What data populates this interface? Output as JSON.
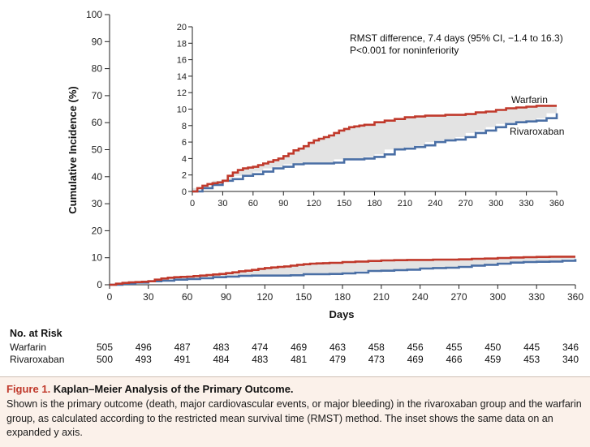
{
  "chart_data": [
    {
      "type": "line",
      "title": "Kaplan-Meier Analysis of the Primary Outcome (main panel)",
      "xlabel": "Days",
      "ylabel": "Cumulative Incidence (%)",
      "xlim": [
        0,
        360
      ],
      "ylim": [
        0,
        100
      ],
      "xticks": [
        "0",
        "30",
        "60",
        "90",
        "120",
        "150",
        "180",
        "210",
        "240",
        "270",
        "300",
        "330",
        "360"
      ],
      "yticks": [
        "0",
        "10",
        "20",
        "30",
        "40",
        "50",
        "60",
        "70",
        "80",
        "90",
        "100"
      ],
      "series": [
        {
          "name": "Warfarin",
          "color": "#c0392b",
          "x": [
            0,
            5,
            10,
            15,
            20,
            25,
            30,
            35,
            40,
            45,
            50,
            55,
            60,
            65,
            70,
            75,
            80,
            85,
            90,
            95,
            100,
            105,
            110,
            115,
            120,
            125,
            130,
            135,
            140,
            145,
            150,
            155,
            160,
            165,
            170,
            180,
            190,
            200,
            210,
            220,
            230,
            240,
            250,
            260,
            270,
            280,
            290,
            300,
            310,
            320,
            330,
            340,
            350,
            360
          ],
          "y": [
            0,
            0.4,
            0.7,
            0.9,
            1.0,
            1.1,
            1.3,
            1.9,
            2.3,
            2.6,
            2.8,
            2.9,
            3.0,
            3.2,
            3.4,
            3.6,
            3.8,
            4.0,
            4.3,
            4.6,
            5.0,
            5.2,
            5.5,
            5.9,
            6.2,
            6.4,
            6.6,
            6.8,
            7.1,
            7.4,
            7.6,
            7.8,
            7.9,
            8.0,
            8.1,
            8.4,
            8.6,
            8.8,
            9.0,
            9.1,
            9.2,
            9.2,
            9.3,
            9.3,
            9.4,
            9.6,
            9.7,
            9.9,
            10.1,
            10.2,
            10.3,
            10.4,
            10.4,
            10.4
          ]
        },
        {
          "name": "Rivaroxaban",
          "color": "#4a6fa5",
          "x": [
            0,
            10,
            20,
            30,
            40,
            50,
            60,
            70,
            80,
            90,
            100,
            110,
            120,
            130,
            140,
            150,
            160,
            170,
            180,
            190,
            200,
            210,
            220,
            230,
            240,
            250,
            260,
            270,
            280,
            290,
            300,
            310,
            320,
            330,
            340,
            350,
            360
          ],
          "y": [
            0,
            0.4,
            0.8,
            1.3,
            1.5,
            1.9,
            2.1,
            2.4,
            2.8,
            3.0,
            3.3,
            3.4,
            3.4,
            3.4,
            3.5,
            3.9,
            3.9,
            4.0,
            4.2,
            4.5,
            5.1,
            5.2,
            5.4,
            5.6,
            6.0,
            6.2,
            6.3,
            6.6,
            7.1,
            7.4,
            7.8,
            8.2,
            8.4,
            8.5,
            8.6,
            8.9,
            9.5
          ]
        }
      ]
    },
    {
      "type": "line",
      "title": "Inset on an expanded y axis",
      "xlim": [
        0,
        360
      ],
      "ylim": [
        0,
        20
      ],
      "xticks": [
        "0",
        "30",
        "60",
        "90",
        "120",
        "150",
        "180",
        "210",
        "240",
        "270",
        "300",
        "330",
        "360"
      ],
      "yticks": [
        "0",
        "2",
        "4",
        "6",
        "8",
        "10",
        "12",
        "14",
        "16",
        "18",
        "20"
      ],
      "annotation_line1": "RMST difference, 7.4 days (95% CI, −1.4 to 16.3)",
      "annotation_line2": "P<0.001 for noninferiority",
      "label_warfarin": "Warfarin",
      "label_rivaroxaban": "Rivaroxaban",
      "series_source": "same data as main panel"
    }
  ],
  "risk_table": {
    "title": "No. at Risk",
    "rows": [
      {
        "label": "Warfarin",
        "values": [
          "505",
          "496",
          "487",
          "483",
          "474",
          "469",
          "463",
          "458",
          "456",
          "455",
          "450",
          "445",
          "346"
        ]
      },
      {
        "label": "Rivaroxaban",
        "values": [
          "500",
          "493",
          "491",
          "484",
          "483",
          "481",
          "479",
          "473",
          "469",
          "466",
          "459",
          "453",
          "340"
        ]
      }
    ]
  },
  "caption": {
    "label": "Figure 1.",
    "heading": "Kaplan–Meier Analysis of the Primary Outcome.",
    "body": "Shown is the primary outcome (death, major cardiovascular events, or major bleeding) in the rivaroxaban group and the warfarin group, as calculated according to the restricted mean survival time (RMST) method. The inset shows the same data on an expanded y axis."
  },
  "colors": {
    "warfarin": "#c0392b",
    "rivaroxaban": "#4a6fa5",
    "shaded_area": "#e3e3e3",
    "caption_label": "#c0392b",
    "caption_background": "#fbf1ea"
  }
}
